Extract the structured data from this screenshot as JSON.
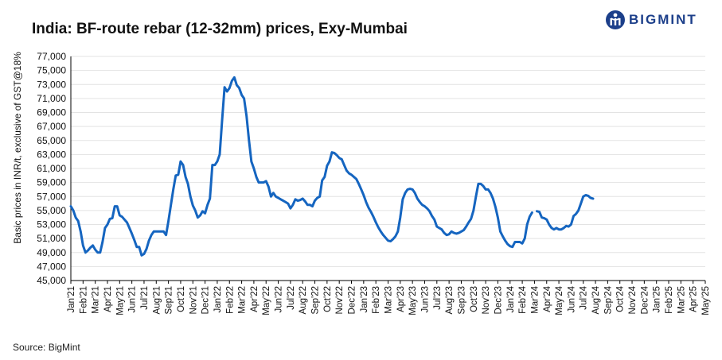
{
  "header": {
    "title": "India: BF-route rebar (12-32mm) prices, Exy-Mumbai",
    "logo_text": "BIGMINT"
  },
  "footer": {
    "source": "Source: BigMint"
  },
  "colors": {
    "line": "#1565c0",
    "grid": "#e3e3e3",
    "axis": "#000000",
    "brand": "#1c3f8a"
  },
  "chart_data": {
    "type": "line",
    "title": "India: BF-route rebar (12-32mm) prices, Exy-Mumbai",
    "ylabel": "Basic prices in INR/t, exclusive of GST@18%",
    "xlabel": "",
    "ylim": [
      45000,
      77000
    ],
    "yticks": [
      45000,
      47000,
      49000,
      51000,
      53000,
      55000,
      57000,
      59000,
      61000,
      63000,
      65000,
      67000,
      69000,
      71000,
      73000,
      75000,
      77000
    ],
    "ytick_labels": [
      "45,000",
      "47,000",
      "49,000",
      "51,000",
      "53,000",
      "55,000",
      "57,000",
      "59,000",
      "61,000",
      "63,000",
      "65,000",
      "67,000",
      "69,000",
      "71,000",
      "73,000",
      "75,000",
      "77,000"
    ],
    "categories": [
      "Jan'21",
      "Feb'21",
      "Mar'21",
      "Apr'21",
      "May'21",
      "Jun'21",
      "Jul'21",
      "Aug'21",
      "Sep'21",
      "Oct'21",
      "Nov'21",
      "Dec'21",
      "Jan'22",
      "Feb'22",
      "Mar'22",
      "Apr'22",
      "May'22",
      "Jun'22",
      "Jul'22",
      "Aug'22",
      "Sep'22",
      "Oct'22",
      "Nov'22",
      "Dec'22",
      "Jan'23",
      "Feb'23",
      "Mar'23",
      "Apr'23",
      "May'23",
      "Jun'23",
      "Jul'23",
      "Aug'23",
      "Sep'23",
      "Oct'23",
      "Nov'23",
      "Dec'23",
      "Jan'24",
      "Feb'24",
      "Mar'24",
      "Apr'24",
      "May'24",
      "Jun'24",
      "Jul'24",
      "Aug'24",
      "Sep'24",
      "Oct'24",
      "Nov'24",
      "Dec'24",
      "Jan'25",
      "Feb'25",
      "Mar'25",
      "Apr'25",
      "May'25"
    ],
    "grid": true,
    "legend": "none",
    "series": [
      {
        "segments": [
          [
            [
              0,
              55600
            ],
            [
              0.2,
              55000
            ],
            [
              0.4,
              54000
            ],
            [
              0.6,
              53500
            ],
            [
              0.8,
              52000
            ],
            [
              1.0,
              50000
            ],
            [
              1.2,
              49000
            ],
            [
              1.4,
              49300
            ],
            [
              1.6,
              49700
            ],
            [
              1.8,
              50000
            ],
            [
              2.0,
              49400
            ],
            [
              2.2,
              49000
            ],
            [
              2.4,
              49000
            ],
            [
              2.6,
              50500
            ],
            [
              2.8,
              52500
            ],
            [
              3.0,
              53000
            ],
            [
              3.2,
              53800
            ],
            [
              3.4,
              53900
            ],
            [
              3.6,
              55600
            ],
            [
              3.8,
              55600
            ],
            [
              4.0,
              54300
            ],
            [
              4.2,
              54100
            ],
            [
              4.4,
              53700
            ],
            [
              4.6,
              53300
            ],
            [
              4.8,
              52500
            ],
            [
              5.0,
              51700
            ],
            [
              5.2,
              50800
            ],
            [
              5.4,
              49800
            ],
            [
              5.6,
              49800
            ],
            [
              5.8,
              48600
            ],
            [
              6.0,
              48800
            ],
            [
              6.2,
              49500
            ],
            [
              6.4,
              50700
            ],
            [
              6.6,
              51500
            ],
            [
              6.8,
              52000
            ],
            [
              7.0,
              52000
            ],
            [
              7.2,
              52000
            ],
            [
              7.4,
              52000
            ],
            [
              7.6,
              52000
            ],
            [
              7.8,
              51500
            ],
            [
              8.0,
              53500
            ],
            [
              8.2,
              55800
            ],
            [
              8.4,
              58000
            ],
            [
              8.6,
              60000
            ],
            [
              8.8,
              60100
            ],
            [
              9.0,
              62000
            ],
            [
              9.2,
              61500
            ],
            [
              9.4,
              59800
            ],
            [
              9.6,
              58800
            ],
            [
              9.8,
              57000
            ],
            [
              10.0,
              55700
            ],
            [
              10.2,
              55000
            ],
            [
              10.4,
              54000
            ],
            [
              10.6,
              54300
            ],
            [
              10.8,
              54900
            ],
            [
              11.0,
              54600
            ],
            [
              11.2,
              55800
            ],
            [
              11.4,
              56700
            ],
            [
              11.6,
              61500
            ],
            [
              11.8,
              61500
            ],
            [
              12.0,
              62000
            ],
            [
              12.2,
              63000
            ],
            [
              12.4,
              68000
            ],
            [
              12.6,
              72600
            ],
            [
              12.8,
              72000
            ],
            [
              13.0,
              72500
            ],
            [
              13.2,
              73500
            ],
            [
              13.4,
              74000
            ],
            [
              13.6,
              72900
            ],
            [
              13.8,
              72500
            ],
            [
              14.0,
              71500
            ],
            [
              14.2,
              71000
            ],
            [
              14.4,
              68500
            ],
            [
              14.6,
              65000
            ],
            [
              14.8,
              62000
            ],
            [
              15.0,
              61000
            ],
            [
              15.2,
              59800
            ],
            [
              15.4,
              59000
            ],
            [
              15.6,
              59000
            ],
            [
              15.8,
              59000
            ],
            [
              16.0,
              59200
            ],
            [
              16.2,
              58400
            ],
            [
              16.4,
              57000
            ],
            [
              16.6,
              57500
            ],
            [
              16.8,
              57000
            ],
            [
              17.0,
              56800
            ],
            [
              17.2,
              56600
            ],
            [
              17.4,
              56400
            ],
            [
              17.6,
              56200
            ],
            [
              17.8,
              56000
            ],
            [
              18.0,
              55300
            ],
            [
              18.2,
              55800
            ],
            [
              18.4,
              56600
            ],
            [
              18.6,
              56400
            ],
            [
              18.8,
              56500
            ],
            [
              19.0,
              56700
            ],
            [
              19.2,
              56300
            ],
            [
              19.4,
              55800
            ],
            [
              19.6,
              55800
            ],
            [
              19.8,
              55600
            ],
            [
              20.0,
              56400
            ],
            [
              20.2,
              56800
            ],
            [
              20.4,
              57000
            ],
            [
              20.6,
              59300
            ],
            [
              20.8,
              59800
            ],
            [
              21.0,
              61400
            ],
            [
              21.2,
              62000
            ],
            [
              21.4,
              63300
            ],
            [
              21.6,
              63200
            ],
            [
              21.8,
              62900
            ],
            [
              22.0,
              62500
            ],
            [
              22.2,
              62300
            ],
            [
              22.4,
              61500
            ],
            [
              22.6,
              60700
            ],
            [
              22.8,
              60300
            ],
            [
              23.0,
              60100
            ],
            [
              23.2,
              59800
            ],
            [
              23.4,
              59500
            ],
            [
              23.6,
              58800
            ],
            [
              23.8,
              58000
            ],
            [
              24.0,
              57200
            ],
            [
              24.2,
              56200
            ],
            [
              24.4,
              55400
            ],
            [
              24.6,
              54800
            ],
            [
              24.8,
              54100
            ],
            [
              25.0,
              53300
            ],
            [
              25.2,
              52600
            ],
            [
              25.4,
              52000
            ],
            [
              25.6,
              51500
            ],
            [
              25.8,
              51100
            ],
            [
              26.0,
              50700
            ],
            [
              26.2,
              50600
            ],
            [
              26.4,
              50900
            ],
            [
              26.6,
              51300
            ],
            [
              26.8,
              52000
            ],
            [
              27.0,
              54000
            ],
            [
              27.2,
              56600
            ],
            [
              27.4,
              57500
            ],
            [
              27.6,
              58000
            ],
            [
              27.8,
              58100
            ],
            [
              28.0,
              58000
            ],
            [
              28.2,
              57500
            ],
            [
              28.4,
              56700
            ],
            [
              28.6,
              56200
            ],
            [
              28.8,
              55800
            ],
            [
              29.0,
              55600
            ],
            [
              29.2,
              55300
            ],
            [
              29.4,
              54900
            ],
            [
              29.6,
              54200
            ],
            [
              29.8,
              53700
            ],
            [
              30.0,
              52700
            ],
            [
              30.2,
              52500
            ],
            [
              30.4,
              52300
            ],
            [
              30.6,
              51800
            ],
            [
              30.8,
              51500
            ],
            [
              31.0,
              51600
            ],
            [
              31.2,
              52000
            ],
            [
              31.4,
              51800
            ],
            [
              31.6,
              51700
            ],
            [
              31.8,
              51800
            ],
            [
              32.0,
              52000
            ],
            [
              32.2,
              52200
            ],
            [
              32.4,
              52700
            ],
            [
              32.6,
              53300
            ],
            [
              32.8,
              53800
            ],
            [
              33.0,
              55000
            ],
            [
              33.2,
              57000
            ],
            [
              33.4,
              58800
            ],
            [
              33.6,
              58800
            ],
            [
              33.8,
              58500
            ],
            [
              34.0,
              58000
            ],
            [
              34.2,
              58000
            ],
            [
              34.4,
              57500
            ],
            [
              34.6,
              56700
            ],
            [
              34.8,
              55500
            ],
            [
              35.0,
              54000
            ],
            [
              35.2,
              52000
            ],
            [
              35.4,
              51300
            ],
            [
              35.6,
              50700
            ],
            [
              35.8,
              50200
            ],
            [
              36.0,
              49900
            ],
            [
              36.2,
              49800
            ],
            [
              36.4,
              50500
            ],
            [
              36.6,
              50500
            ],
            [
              36.8,
              50500
            ],
            [
              37.0,
              50300
            ],
            [
              37.2,
              51000
            ],
            [
              37.4,
              53000
            ],
            [
              37.6,
              54100
            ],
            [
              37.8,
              54700
            ]
          ],
          [
            [
              38.2,
              54900
            ],
            [
              38.4,
              54800
            ],
            [
              38.6,
              54000
            ],
            [
              38.8,
              53900
            ],
            [
              39.0,
              53700
            ],
            [
              39.2,
              53000
            ],
            [
              39.4,
              52500
            ],
            [
              39.6,
              52300
            ],
            [
              39.8,
              52500
            ],
            [
              40.0,
              52300
            ],
            [
              40.2,
              52300
            ],
            [
              40.4,
              52500
            ],
            [
              40.6,
              52800
            ],
            [
              40.8,
              52700
            ],
            [
              41.0,
              53000
            ],
            [
              41.2,
              54200
            ],
            [
              41.4,
              54500
            ],
            [
              41.6,
              55000
            ],
            [
              41.8,
              56000
            ],
            [
              42.0,
              57000
            ],
            [
              42.2,
              57200
            ],
            [
              42.4,
              57100
            ],
            [
              42.6,
              56800
            ],
            [
              42.8,
              56700
            ]
          ]
        ]
      }
    ]
  }
}
